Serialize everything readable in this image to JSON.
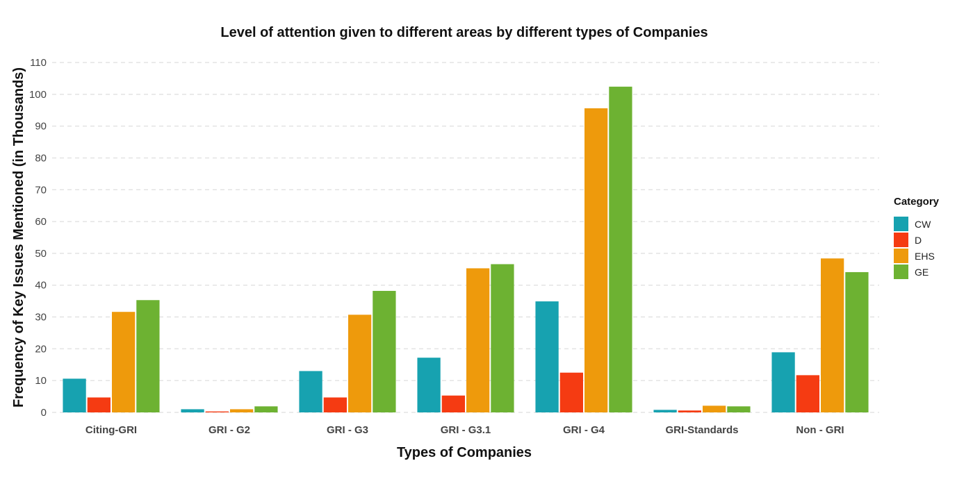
{
  "chart_data": {
    "type": "bar",
    "title": "Level of attention given to different areas by different types of Companies",
    "xlabel": "Types of Companies",
    "ylabel": "Frequency of Key Issues Mentioned (in Thousands)",
    "ylim": [
      0,
      110
    ],
    "yticks": [
      0,
      10,
      20,
      30,
      40,
      50,
      60,
      70,
      80,
      90,
      100,
      110
    ],
    "grid": "horizontal dashed",
    "legend_title": "Category",
    "legend_position": "right",
    "categories": [
      "Citing-GRI",
      "GRI - G2",
      "GRI - G3",
      "GRI - G3.1",
      "GRI - G4",
      "GRI-Standards",
      "Non - GRI"
    ],
    "series": [
      {
        "name": "CW",
        "color": "#17A2B0",
        "values": [
          10.6,
          1.0,
          13.0,
          17.2,
          34.9,
          0.8,
          18.9
        ]
      },
      {
        "name": "D",
        "color": "#F53B12",
        "values": [
          4.7,
          0.3,
          4.7,
          5.3,
          12.5,
          0.6,
          11.7
        ]
      },
      {
        "name": "EHS",
        "color": "#EE9A0C",
        "values": [
          31.6,
          1.0,
          30.7,
          45.3,
          95.6,
          2.1,
          48.4
        ]
      },
      {
        "name": "GE",
        "color": "#6DB232",
        "values": [
          35.3,
          1.9,
          38.2,
          46.6,
          102.4,
          1.9,
          44.1
        ]
      }
    ]
  }
}
